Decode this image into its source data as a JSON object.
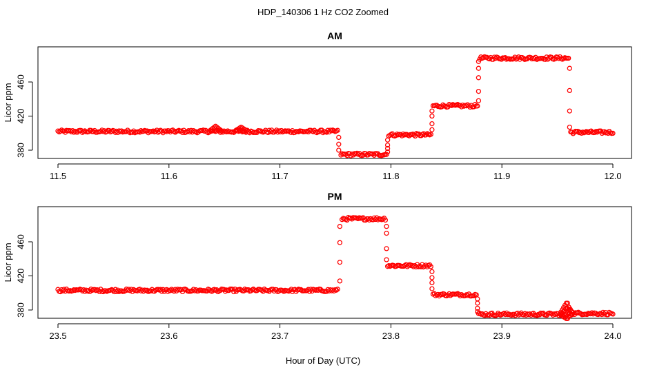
{
  "figure": {
    "title": "HDP_140306  1 Hz CO2 Zoomed",
    "xlabel": "Hour of Day (UTC)",
    "marker_color": "#ff0000"
  },
  "chart_data": [
    {
      "type": "scatter",
      "title": "AM",
      "xlabel": "",
      "ylabel": "Licor ppm",
      "xlim": [
        11.5,
        12.0
      ],
      "ylim": [
        366,
        496
      ],
      "xticks": [
        "11.5",
        "11.6",
        "11.7",
        "11.8",
        "11.9",
        "12.0"
      ],
      "yticks": [
        "380",
        "420",
        "460"
      ],
      "grid": false,
      "levels": [
        {
          "x_start": 11.5,
          "x_end": 11.752,
          "y": 402
        },
        {
          "x_start": 11.755,
          "x_end": 11.796,
          "y": 375
        },
        {
          "x_start": 11.798,
          "x_end": 11.836,
          "y": 398
        },
        {
          "x_start": 11.838,
          "x_end": 11.878,
          "y": 432
        },
        {
          "x_start": 11.88,
          "x_end": 11.96,
          "y": 488
        },
        {
          "x_start": 11.962,
          "x_end": 12.0,
          "y": 401
        }
      ],
      "features": [
        {
          "x": 11.642,
          "y": 408
        },
        {
          "x": 11.665,
          "y": 407
        }
      ],
      "transitions": [
        {
          "x": 11.753,
          "y": [
            395,
            387,
            380
          ]
        },
        {
          "x": 11.797,
          "y": [
            378,
            382,
            386,
            392
          ]
        },
        {
          "x": 11.837,
          "y": [
            404,
            411,
            420,
            426
          ]
        },
        {
          "x": 11.879,
          "y": [
            438,
            449,
            465,
            476,
            484
          ]
        },
        {
          "x": 11.961,
          "y": [
            476,
            450,
            426,
            407
          ]
        }
      ]
    },
    {
      "type": "scatter",
      "title": "PM",
      "xlabel": "",
      "ylabel": "Licor ppm",
      "xlim": [
        23.5,
        24.0
      ],
      "ylim": [
        366,
        496
      ],
      "xticks": [
        "23.5",
        "23.6",
        "23.7",
        "23.8",
        "23.9",
        "24.0"
      ],
      "yticks": [
        "380",
        "420",
        "460"
      ],
      "grid": false,
      "levels": [
        {
          "x_start": 23.5,
          "x_end": 23.752,
          "y": 403
        },
        {
          "x_start": 23.756,
          "x_end": 23.795,
          "y": 487
        },
        {
          "x_start": 23.797,
          "x_end": 23.836,
          "y": 432
        },
        {
          "x_start": 23.838,
          "x_end": 23.877,
          "y": 398
        },
        {
          "x_start": 23.879,
          "x_end": 23.957,
          "y": 375
        },
        {
          "x_start": 23.96,
          "x_end": 24.0,
          "y": 376
        }
      ],
      "features": [
        {
          "x": 23.958,
          "y": 388
        },
        {
          "x": 23.958,
          "y": 370
        },
        {
          "x": 23.959,
          "y": 382
        }
      ],
      "transitions": [
        {
          "x": 23.754,
          "y": [
            414,
            436,
            459,
            478
          ]
        },
        {
          "x": 23.796,
          "y": [
            478,
            470,
            452,
            439
          ]
        },
        {
          "x": 23.837,
          "y": [
            425,
            418,
            412,
            405
          ]
        },
        {
          "x": 23.878,
          "y": [
            393,
            388,
            382,
            378
          ]
        }
      ]
    }
  ]
}
